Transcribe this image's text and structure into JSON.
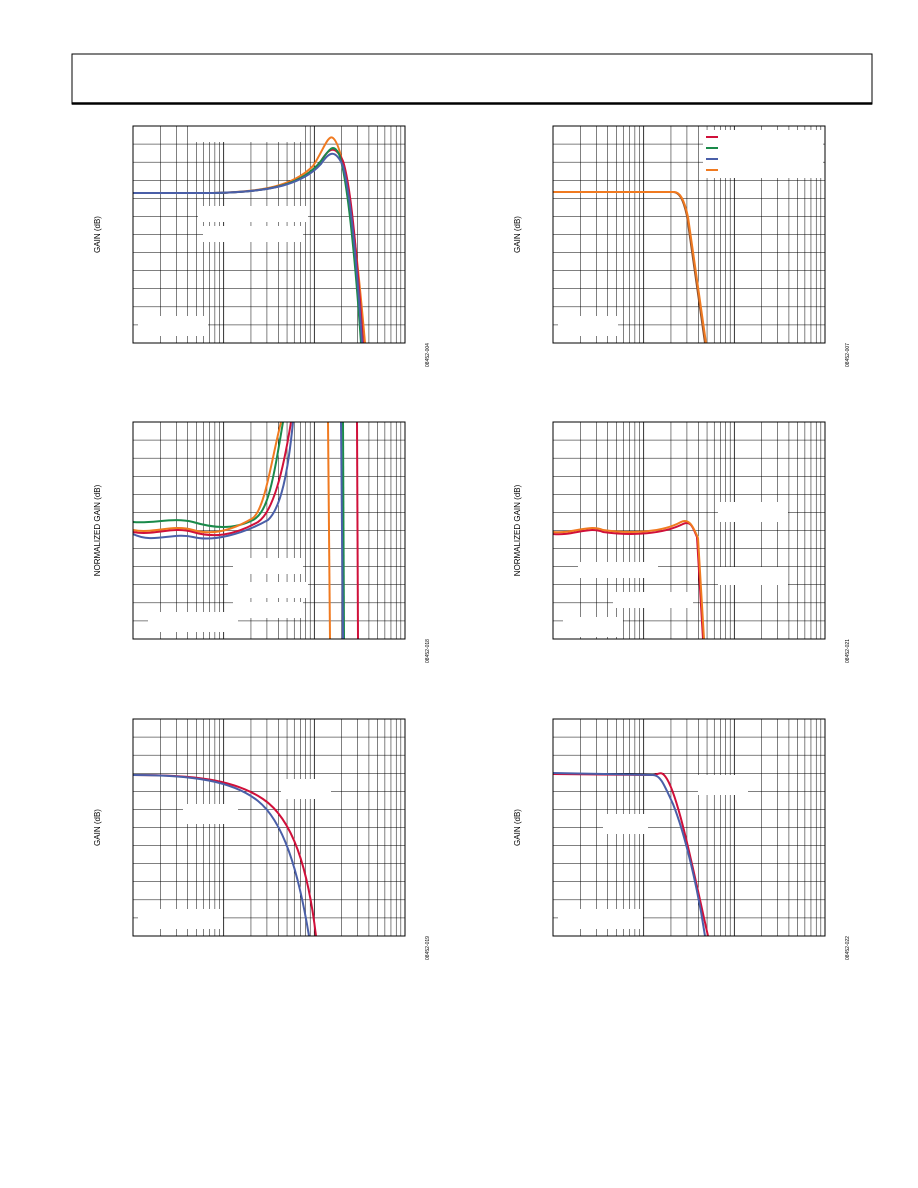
{
  "figures": [
    {
      "y_label": "GAIN (dB)",
      "figure_id": "08452-004"
    },
    {
      "y_label": "GAIN (dB)",
      "figure_id": "08452-007"
    },
    {
      "y_label": "NORMALIZED GAIN (dB)",
      "figure_id": "08452-018"
    },
    {
      "y_label": "NORMALIZED GAIN (dB)",
      "figure_id": "08452-021"
    },
    {
      "y_label": "GAIN (dB)",
      "figure_id": "08452-019"
    },
    {
      "y_label": "GAIN (dB)",
      "figure_id": "08452-022"
    }
  ]
}
